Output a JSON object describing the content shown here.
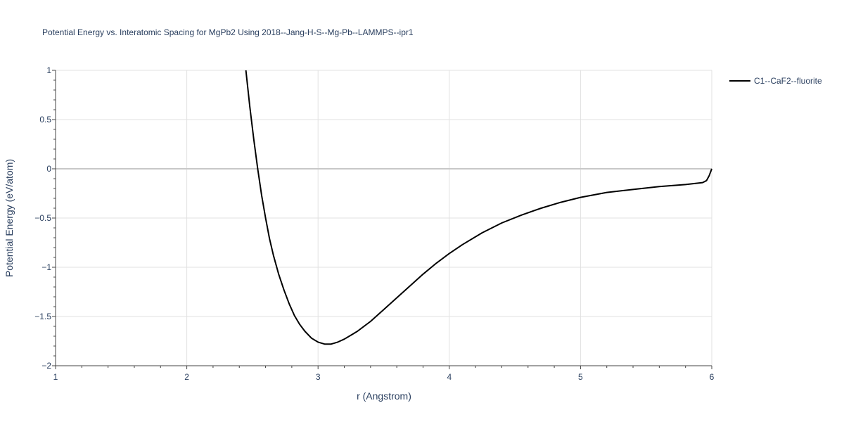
{
  "chart_data": {
    "type": "line",
    "title": "Potential Energy vs. Interatomic Spacing for MgPb2 Using 2018--Jang-H-S--Mg-Pb--LAMMPS--ipr1",
    "xlabel": "r (Angstrom)",
    "ylabel": "Potential Energy (eV/atom)",
    "xlim": [
      1,
      6
    ],
    "ylim": [
      -2,
      1
    ],
    "xticks": [
      1,
      2,
      3,
      4,
      5,
      6
    ],
    "xtick_labels": [
      "1",
      "2",
      "3",
      "4",
      "5",
      "6"
    ],
    "yticks": [
      -2,
      -1.5,
      -1,
      -0.5,
      0,
      0.5,
      1
    ],
    "ytick_labels": [
      "−2",
      "−1.5",
      "−1",
      "−0.5",
      "0",
      "0.5",
      "1"
    ],
    "grid": true,
    "legend_position": "top-right",
    "series": [
      {
        "name": "C1--CaF2--fluorite",
        "color": "#000000",
        "x": [
          2.45,
          2.48,
          2.51,
          2.54,
          2.57,
          2.6,
          2.63,
          2.66,
          2.7,
          2.74,
          2.78,
          2.82,
          2.86,
          2.9,
          2.95,
          3.0,
          3.05,
          3.1,
          3.15,
          3.2,
          3.25,
          3.3,
          3.4,
          3.5,
          3.6,
          3.7,
          3.8,
          3.9,
          4.0,
          4.1,
          4.25,
          4.4,
          4.55,
          4.7,
          4.85,
          5.0,
          5.2,
          5.4,
          5.6,
          5.8,
          5.93,
          5.96,
          5.98,
          6.0
        ],
        "y": [
          1.0,
          0.63,
          0.3,
          0.0,
          -0.27,
          -0.5,
          -0.71,
          -0.88,
          -1.07,
          -1.23,
          -1.37,
          -1.49,
          -1.58,
          -1.65,
          -1.72,
          -1.76,
          -1.78,
          -1.78,
          -1.76,
          -1.73,
          -1.69,
          -1.65,
          -1.55,
          -1.43,
          -1.31,
          -1.19,
          -1.07,
          -0.96,
          -0.86,
          -0.77,
          -0.65,
          -0.55,
          -0.47,
          -0.4,
          -0.34,
          -0.29,
          -0.24,
          -0.21,
          -0.18,
          -0.16,
          -0.14,
          -0.12,
          -0.07,
          0.0
        ]
      }
    ]
  }
}
